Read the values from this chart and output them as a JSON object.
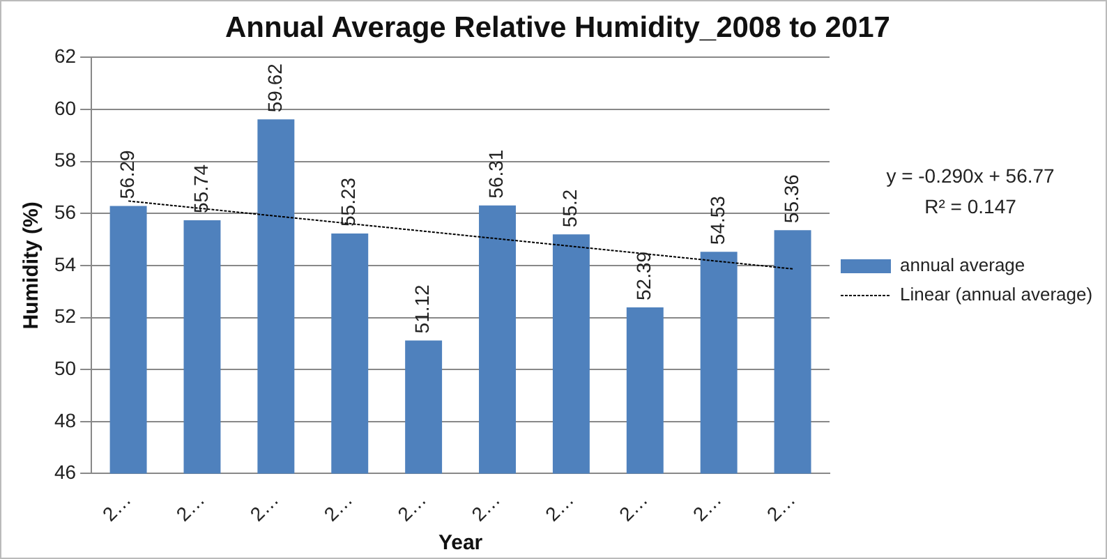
{
  "chart_data": {
    "type": "bar",
    "title": "Annual Average Relative Humidity_2008 to 2017",
    "xlabel": "Year",
    "ylabel": "Humidity (%)",
    "categories": [
      "2…",
      "2…",
      "2…",
      "2…",
      "2…",
      "2…",
      "2…",
      "2…",
      "2…",
      "2…"
    ],
    "series": [
      {
        "name": "annual average",
        "color": "#4f81bd",
        "values": [
          56.29,
          55.74,
          59.62,
          55.23,
          51.12,
          56.31,
          55.2,
          52.39,
          54.53,
          55.36
        ],
        "data_labels": true
      },
      {
        "name": "Linear (annual average)",
        "type": "line",
        "color": "#000000",
        "line_style": "dotted",
        "marker": "none",
        "values": [
          56.48,
          56.19,
          55.9,
          55.61,
          55.32,
          55.03,
          54.74,
          54.45,
          54.16,
          53.87
        ]
      }
    ],
    "ylim": [
      46,
      62
    ],
    "yticks": [
      46,
      48,
      50,
      52,
      54,
      56,
      58,
      60,
      62
    ],
    "grid": "y",
    "legend": "right",
    "annotations": [
      "y = -0.290x + 56.77",
      "R² = 0.147"
    ]
  }
}
